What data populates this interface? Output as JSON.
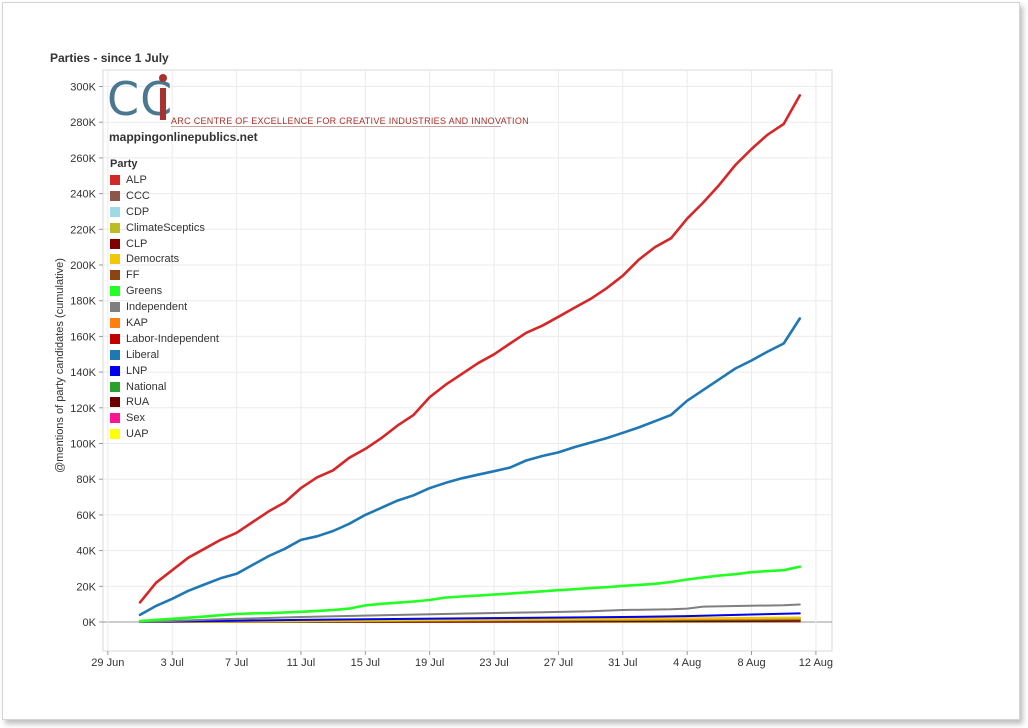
{
  "title": "Parties - since 1 July",
  "logo": {
    "letters": "CC",
    "tagline": "ARC CENTRE OF EXCELLENCE FOR CREATIVE INDUSTRIES AND INNOVATION",
    "site": "mappingonlinepublics.net"
  },
  "legend_title": "Party",
  "chart_data": {
    "type": "line",
    "title": "Parties - since 1 July",
    "ylabel": "@mentions of party candidates (cumulative)",
    "xlabel": "",
    "x_range_days": [
      -2,
      43
    ],
    "ylim": [
      -17000,
      300000
    ],
    "y_ticks": [
      0,
      20000,
      40000,
      60000,
      80000,
      100000,
      120000,
      140000,
      160000,
      180000,
      200000,
      220000,
      240000,
      260000,
      280000,
      300000
    ],
    "y_tick_labels": [
      "0K",
      "20K",
      "40K",
      "60K",
      "80K",
      "100K",
      "120K",
      "140K",
      "160K",
      "180K",
      "200K",
      "220K",
      "240K",
      "260K",
      "280K",
      "300K"
    ],
    "x_ticks": [
      -2,
      2,
      6,
      10,
      14,
      18,
      22,
      26,
      30,
      34,
      38,
      42
    ],
    "x_tick_labels": [
      "29 Jun",
      "3 Jul",
      "7 Jul",
      "11 Jul",
      "15 Jul",
      "19 Jul",
      "23 Jul",
      "27 Jul",
      "31 Jul",
      "4 Aug",
      "8 Aug",
      "12 Aug"
    ],
    "grid": true,
    "legend_position": "top-left",
    "series": [
      {
        "name": "ALP",
        "color": "#d62728",
        "x": [
          0,
          1,
          2,
          3,
          4,
          5,
          6,
          7,
          8,
          9,
          10,
          11,
          12,
          13,
          14,
          15,
          16,
          17,
          18,
          19,
          20,
          21,
          22,
          23,
          24,
          25,
          26,
          27,
          28,
          29,
          30,
          31,
          32,
          33,
          34,
          35,
          36,
          37,
          38,
          39,
          40,
          41
        ],
        "values": [
          11000,
          22000,
          29000,
          36000,
          41000,
          46000,
          50000,
          56000,
          62000,
          67000,
          75000,
          81000,
          85000,
          92000,
          97000,
          103000,
          110000,
          116000,
          126000,
          133000,
          139000,
          145000,
          150000,
          156000,
          162000,
          166000,
          171000,
          176000,
          181000,
          187000,
          194000,
          203000,
          210000,
          215000,
          226000,
          235000,
          245000,
          256000,
          265000,
          273000,
          279000,
          295000
        ]
      },
      {
        "name": "CCC",
        "color": "#8c564b",
        "x": [
          0,
          41
        ],
        "values": [
          0,
          400
        ]
      },
      {
        "name": "CDP",
        "color": "#9edae5",
        "x": [
          0,
          41
        ],
        "values": [
          0,
          300
        ]
      },
      {
        "name": "ClimateSceptics",
        "color": "#bcbd22",
        "x": [
          0,
          41
        ],
        "values": [
          0,
          2000
        ]
      },
      {
        "name": "CLP",
        "color": "#800000",
        "x": [
          0,
          41
        ],
        "values": [
          0,
          600
        ]
      },
      {
        "name": "Democrats",
        "color": "#f0c808",
        "x": [
          0,
          41
        ],
        "values": [
          0,
          2500
        ]
      },
      {
        "name": "FF",
        "color": "#8b4513",
        "x": [
          0,
          29
        ],
        "values": [
          0,
          400
        ]
      },
      {
        "name": "Greens",
        "color": "#22ff22",
        "x": [
          0,
          1,
          2,
          3,
          4,
          5,
          6,
          7,
          8,
          9,
          10,
          11,
          12,
          13,
          14,
          15,
          16,
          17,
          18,
          19,
          20,
          21,
          22,
          23,
          24,
          25,
          26,
          27,
          28,
          29,
          30,
          31,
          32,
          33,
          34,
          35,
          36,
          37,
          38,
          39,
          40,
          41
        ],
        "values": [
          500,
          1200,
          1800,
          2400,
          3000,
          3800,
          4500,
          4800,
          5000,
          5300,
          5700,
          6200,
          6700,
          7500,
          9300,
          10200,
          10800,
          11500,
          12300,
          13700,
          14300,
          14800,
          15400,
          15900,
          16600,
          17200,
          17800,
          18400,
          19000,
          19500,
          20200,
          20800,
          21400,
          22400,
          23800,
          25000,
          26000,
          26800,
          27900,
          28500,
          29000,
          31000
        ]
      },
      {
        "name": "Independent",
        "color": "#7f7f7f",
        "x": [
          0,
          5,
          10,
          15,
          20,
          25,
          28,
          29,
          30,
          33,
          34,
          35,
          40,
          41
        ],
        "values": [
          0,
          1500,
          2800,
          3800,
          4700,
          5500,
          6000,
          6400,
          6700,
          7100,
          7500,
          8600,
          9400,
          9800
        ]
      },
      {
        "name": "KAP",
        "color": "#ff7f0e",
        "x": [
          0,
          41
        ],
        "values": [
          0,
          2000
        ]
      },
      {
        "name": "Labor-Independent",
        "color": "#c00000",
        "x": [
          0,
          41
        ],
        "values": [
          0,
          300
        ]
      },
      {
        "name": "Liberal",
        "color": "#1f77b4",
        "x": [
          0,
          1,
          2,
          3,
          4,
          5,
          6,
          7,
          8,
          9,
          10,
          11,
          12,
          13,
          14,
          15,
          16,
          17,
          18,
          19,
          20,
          21,
          22,
          23,
          24,
          25,
          26,
          27,
          28,
          29,
          30,
          31,
          32,
          33,
          34,
          35,
          36,
          37,
          38,
          39,
          40,
          41
        ],
        "values": [
          4000,
          9000,
          13000,
          17500,
          21000,
          24500,
          27000,
          32000,
          37000,
          41000,
          46000,
          48000,
          51000,
          55000,
          60000,
          64000,
          68000,
          71000,
          75000,
          78000,
          80500,
          82500,
          84500,
          86500,
          90500,
          93000,
          95000,
          98000,
          100500,
          103000,
          106000,
          109000,
          112500,
          116000,
          124000,
          130000,
          136000,
          142000,
          146500,
          151500,
          156000,
          170000
        ]
      },
      {
        "name": "LNP",
        "color": "#0000ee",
        "x": [
          0,
          10,
          20,
          30,
          34,
          38,
          41
        ],
        "values": [
          0,
          1200,
          2000,
          2800,
          3300,
          4200,
          4800
        ]
      },
      {
        "name": "National",
        "color": "#2ca02c",
        "x": [
          0,
          41
        ],
        "values": [
          0,
          1500
        ]
      },
      {
        "name": "RUA",
        "color": "#6b0000",
        "x": [
          0,
          41
        ],
        "values": [
          0,
          200
        ]
      },
      {
        "name": "Sex",
        "color": "#ff1493",
        "x": [
          0,
          41
        ],
        "values": [
          0,
          300
        ]
      },
      {
        "name": "UAP",
        "color": "#ffff00",
        "x": [
          0,
          41
        ],
        "values": [
          0,
          500
        ]
      }
    ]
  }
}
